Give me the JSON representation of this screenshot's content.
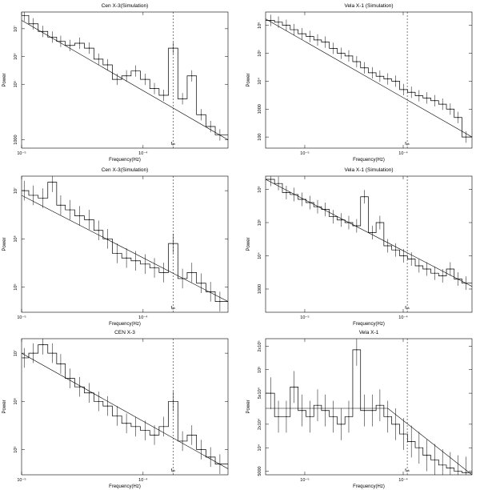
{
  "figure": {
    "panels": [
      {
        "title": "Cen X-3(Simulation)",
        "xlabel": "Frequency(Hz)",
        "ylabel": "Power",
        "annotation": "fₑₕ",
        "x_ticks": [
          "10⁻⁵",
          "10⁻⁴",
          "10⁻³"
        ],
        "y_ticks": [
          "1000",
          "10⁵",
          "10⁶",
          "10⁷"
        ]
      },
      {
        "title": "Vela X-1 (Simulation)",
        "xlabel": "Frequency(Hz)",
        "ylabel": "Power",
        "annotation": "fₑₕ",
        "x_ticks": [
          "10⁻⁵",
          "10⁻⁴",
          "10⁻³"
        ],
        "y_ticks": [
          "100",
          "1000",
          "10⁴",
          "10⁵",
          "10⁶"
        ]
      },
      {
        "title": "Cen X-3(Simulation)",
        "xlabel": "Frequency(Hz)",
        "ylabel": "Power",
        "annotation": "fₑₕ",
        "x_ticks": [
          "10⁻⁵",
          "10⁻⁴",
          "10⁻³"
        ],
        "y_ticks": [
          "10⁵",
          "10⁶",
          "10⁷"
        ]
      },
      {
        "title": "Vela X-1 (Simulation)",
        "xlabel": "Frequency(Hz)",
        "ylabel": "Power",
        "annotation": "fₑₕ",
        "x_ticks": [
          "10⁻⁵",
          "10⁻⁴"
        ],
        "y_ticks": [
          "1000",
          "10⁴",
          "10⁵",
          "10⁶"
        ]
      },
      {
        "title": "CEN X-3",
        "xlabel": "Frequency(Hz)",
        "ylabel": "Power",
        "annotation": "fₑₕ",
        "x_ticks": [
          "10⁻⁵",
          "10⁻⁴",
          "10⁻³"
        ],
        "y_ticks": [
          "10⁵",
          "10⁶",
          "10⁷"
        ]
      },
      {
        "title": "Vela X-1",
        "xlabel": "Frequency(Hz)",
        "ylabel": "Power",
        "annotation": "fₑₕ",
        "x_ticks": [
          "10⁻⁵",
          "10⁻⁴"
        ],
        "y_ticks": [
          "5000",
          "10⁴",
          "2x10⁴",
          "5x10⁴",
          "10⁵",
          "2x10⁵"
        ]
      }
    ]
  },
  "chart_data": [
    {
      "type": "line",
      "title": "Cen X-3(Simulation)",
      "xlabel": "Frequency(Hz)",
      "ylabel": "Power",
      "xscale": "log",
      "yscale": "log",
      "xlim": [
        1e-05,
        0.0005
      ],
      "ylim": [
        500,
        40000000
      ],
      "x": [
        1.05e-05,
        1.25e-05,
        1.5e-05,
        1.8e-05,
        2.1e-05,
        2.5e-05,
        3e-05,
        3.6e-05,
        4.3e-05,
        5.1e-05,
        6.1e-05,
        7.3e-05,
        8.7e-05,
        0.000104,
        0.000124,
        0.000148,
        0.000177,
        0.000211,
        0.000252,
        0.000301,
        0.000359,
        0.000429
      ],
      "y": [
        30000000,
        15000000,
        8000000,
        5000000,
        3500000,
        2500000,
        3000000,
        2000000,
        800000,
        500000,
        150000,
        200000,
        300000,
        150000,
        70000,
        40000,
        2000000,
        30000,
        200000,
        8000,
        3000,
        1500
      ],
      "fit": {
        "x": [
          1e-05,
          0.0005
        ],
        "y": [
          20000000,
          1000
        ]
      },
      "vline_x": 0.000177
    },
    {
      "type": "line",
      "title": "Vela X-1 (Simulation)",
      "xlabel": "Frequency(Hz)",
      "ylabel": "Power",
      "xscale": "log",
      "yscale": "log",
      "xlim": [
        4e-06,
        0.0005
      ],
      "ylim": [
        40,
        3000000
      ],
      "x": [
        4.5e-06,
        5.4e-06,
        6.5e-06,
        7.8e-06,
        9.4e-06,
        1.13e-05,
        1.35e-05,
        1.62e-05,
        1.95e-05,
        2.34e-05,
        2.8e-05,
        3.37e-05,
        4.04e-05,
        4.85e-05,
        5.8e-05,
        6.98e-05,
        8.38e-05,
        0.000101,
        0.000121,
        0.000145,
        0.000174,
        0.000209,
        0.000251,
        0.000301,
        0.000361,
        0.000433
      ],
      "y": [
        1500000,
        1300000,
        1000000,
        700000,
        500000,
        400000,
        300000,
        250000,
        150000,
        100000,
        80000,
        50000,
        30000,
        20000,
        15000,
        12000,
        10000,
        5000,
        4000,
        3000,
        2500,
        2000,
        1500,
        1000,
        500,
        100
      ],
      "fit": {
        "x": [
          4e-06,
          0.0005
        ],
        "y": [
          1700000,
          100
        ]
      },
      "vline_x": 0.00011
    },
    {
      "type": "line",
      "title": "Cen X-3(Simulation)",
      "xlabel": "Frequency(Hz)",
      "ylabel": "Power",
      "xscale": "log",
      "yscale": "log",
      "xlim": [
        1e-05,
        0.0005
      ],
      "ylim": [
        30000,
        20000000
      ],
      "x": [
        1.05e-05,
        1.25e-05,
        1.5e-05,
        1.8e-05,
        2.1e-05,
        2.5e-05,
        3e-05,
        3.6e-05,
        4.3e-05,
        5.1e-05,
        6.1e-05,
        7.3e-05,
        8.7e-05,
        0.000104,
        0.000124,
        0.000148,
        0.000177,
        0.000211,
        0.000252,
        0.000301,
        0.000359,
        0.000429
      ],
      "y": [
        10000000,
        8000000,
        7000000,
        15000000,
        5000000,
        4000000,
        3000000,
        2500000,
        1500000,
        1000000,
        500000,
        400000,
        350000,
        300000,
        250000,
        200000,
        800000,
        150000,
        200000,
        120000,
        80000,
        50000
      ],
      "fit": {
        "x": [
          1e-05,
          0.0005
        ],
        "y": [
          8000000,
          50000
        ]
      },
      "vline_x": 0.000177
    },
    {
      "type": "line",
      "title": "Vela X-1 (Simulation)",
      "xlabel": "Frequency(Hz)",
      "ylabel": "Power",
      "xscale": "log",
      "yscale": "log",
      "xlim": [
        4e-06,
        0.0005
      ],
      "ylim": [
        200,
        2500000
      ],
      "x": [
        4.5e-06,
        5.4e-06,
        6.5e-06,
        7.8e-06,
        9.4e-06,
        1.13e-05,
        1.35e-05,
        1.62e-05,
        1.95e-05,
        2.34e-05,
        2.8e-05,
        3.37e-05,
        4.04e-05,
        4.85e-05,
        5.8e-05,
        6.98e-05,
        8.38e-05,
        0.000101,
        0.000121,
        0.000145,
        0.000174,
        0.000209,
        0.000251,
        0.000301,
        0.000361,
        0.000433
      ],
      "y": [
        2000000,
        1500000,
        800000,
        700000,
        500000,
        400000,
        300000,
        250000,
        150000,
        120000,
        100000,
        80000,
        600000,
        50000,
        100000,
        20000,
        15000,
        10000,
        8000,
        5000,
        4000,
        3000,
        2500,
        4000,
        2000,
        1500
      ],
      "fit": {
        "x": [
          4e-06,
          0.0005
        ],
        "y": [
          2000000,
          1200
        ]
      },
      "vline_x": 0.00011
    },
    {
      "type": "line",
      "title": "CEN X-3",
      "xlabel": "Frequency(Hz)",
      "ylabel": "Power",
      "xscale": "log",
      "yscale": "log",
      "xlim": [
        1e-05,
        0.0005
      ],
      "ylim": [
        30000,
        20000000
      ],
      "x": [
        1.05e-05,
        1.25e-05,
        1.5e-05,
        1.8e-05,
        2.1e-05,
        2.5e-05,
        3e-05,
        3.6e-05,
        4.3e-05,
        5.1e-05,
        6.1e-05,
        7.3e-05,
        8.7e-05,
        0.000104,
        0.000124,
        0.000148,
        0.000177,
        0.000211,
        0.000252,
        0.000301,
        0.000359,
        0.000429
      ],
      "y": [
        8000000,
        10000000,
        15000000,
        10000000,
        6000000,
        3000000,
        2000000,
        1500000,
        1000000,
        800000,
        500000,
        350000,
        300000,
        250000,
        200000,
        300000,
        1000000,
        150000,
        200000,
        100000,
        70000,
        50000
      ],
      "fit": {
        "x": [
          1e-05,
          0.0005
        ],
        "y": [
          10000000,
          40000
        ]
      },
      "vline_x": 0.000177
    },
    {
      "type": "line",
      "title": "Vela X-1",
      "xlabel": "Frequency(Hz)",
      "ylabel": "Power",
      "xscale": "log",
      "yscale": "log",
      "xlim": [
        4e-06,
        0.0005
      ],
      "ylim": [
        4500,
        250000
      ],
      "x": [
        4.5e-06,
        5.4e-06,
        6.5e-06,
        7.8e-06,
        9.4e-06,
        1.13e-05,
        1.35e-05,
        1.62e-05,
        1.95e-05,
        2.34e-05,
        2.8e-05,
        3.37e-05,
        4.04e-05,
        4.85e-05,
        5.8e-05,
        6.98e-05,
        8.38e-05,
        0.000101,
        0.000121,
        0.000145,
        0.000174,
        0.000209,
        0.000251,
        0.000301,
        0.000361,
        0.000433
      ],
      "y": [
        50000,
        25000,
        25000,
        60000,
        30000,
        25000,
        35000,
        30000,
        25000,
        20000,
        25000,
        180000,
        30000,
        30000,
        35000,
        25000,
        20000,
        15000,
        12000,
        10000,
        8000,
        7000,
        6000,
        5500,
        5000,
        4800
      ],
      "fit": {
        "x": [
          4e-06,
          6.98e-05,
          0.0005
        ],
        "y": [
          32000,
          32000,
          4500
        ]
      },
      "vline_x": 0.00011
    }
  ]
}
